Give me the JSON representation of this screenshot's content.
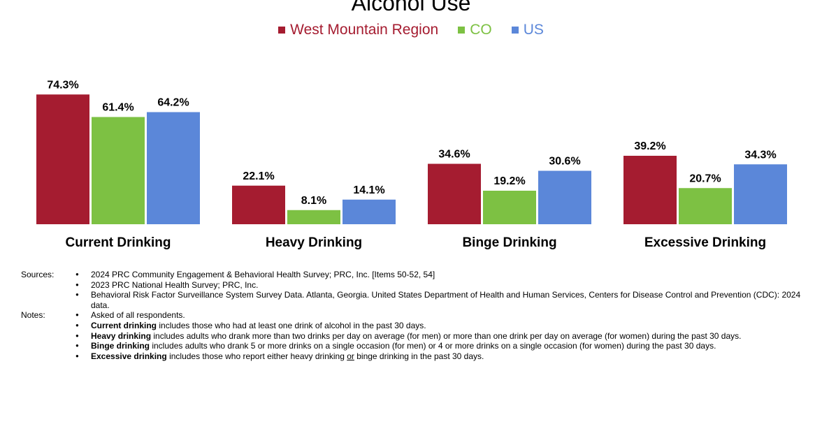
{
  "chart_data": {
    "type": "bar",
    "title": "Alcohol Use",
    "categories": [
      "Current Drinking",
      "Heavy Drinking",
      "Binge Drinking",
      "Excessive Drinking"
    ],
    "series": [
      {
        "name": "West Mountain Region",
        "color": "#A51C30",
        "values": [
          74.3,
          22.1,
          34.6,
          39.2
        ],
        "labels": [
          "74.3%",
          "22.1%",
          "34.6%",
          "39.2%"
        ]
      },
      {
        "name": "CO",
        "color": "#7DC143",
        "values": [
          61.4,
          8.1,
          19.2,
          20.7
        ],
        "labels": [
          "61.4%",
          "8.1%",
          "19.2%",
          "20.7%"
        ]
      },
      {
        "name": "US",
        "color": "#5B87D9",
        "values": [
          64.2,
          14.1,
          30.6,
          34.3
        ],
        "labels": [
          "64.2%",
          "14.1%",
          "30.6%",
          "34.3%"
        ]
      }
    ],
    "legend_position": "top",
    "grid": false,
    "ylim": [
      0,
      100
    ]
  },
  "notes": {
    "sources_label": "Sources:",
    "sources": [
      "2024 PRC Community Engagement & Behavioral Health Survey; PRC, Inc. [Items 50-52, 54]",
      "2023 PRC National Health Survey; PRC, Inc.",
      "Behavioral Risk Factor Surveillance System Survey Data. Atlanta, Georgia. United States Department of Health and Human Services, Centers for Disease Control and Prevention (CDC): 2024 data."
    ],
    "notes_label": "Notes:",
    "notes": [
      {
        "bold": "",
        "text": "Asked of all respondents."
      },
      {
        "bold": "Current drinking",
        "text": " includes those who had at least one drink of alcohol in the past 30 days."
      },
      {
        "bold": "Heavy drinking",
        "text": " includes adults who drank more than two drinks per day on average (for men) or more than one drink per day on average (for women) during the past 30 days."
      },
      {
        "bold": "Binge drinking",
        "text": " includes adults who drank 5 or more drinks on a single occasion (for men) or 4 or more drinks on a single occasion (for women) during the past 30 days."
      },
      {
        "bold": "Excessive drinking",
        "text": " includes those who report either heavy drinking ",
        "underline": "or",
        "text2": " binge drinking in the past 30 days."
      }
    ]
  }
}
